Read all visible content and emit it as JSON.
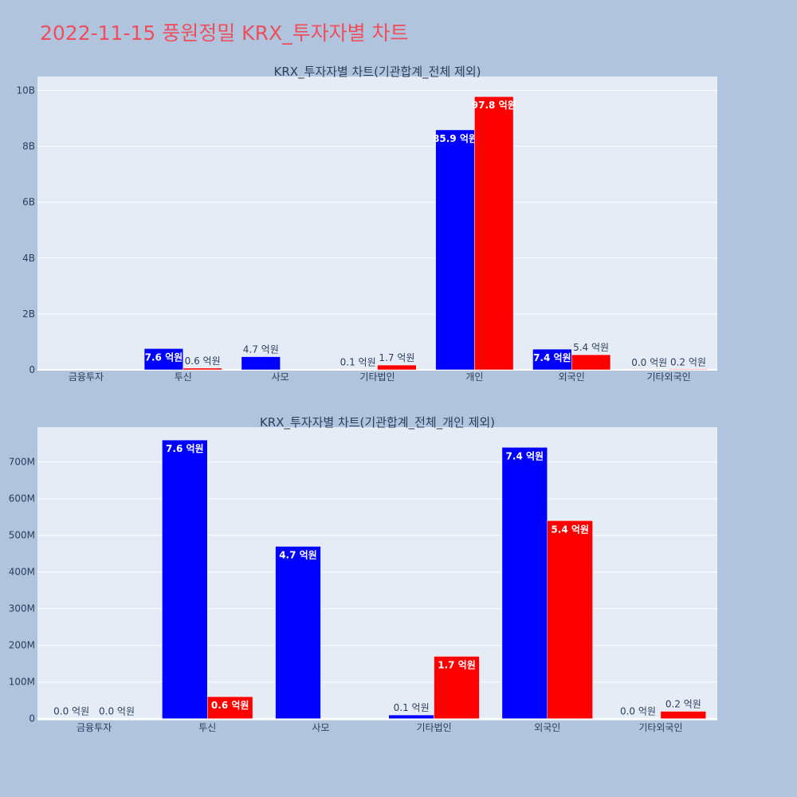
{
  "title": "2022-11-15 풍원정밀 KRX_투자자별 차트",
  "colors": {
    "buy": "#0000ff",
    "sell": "#ff0000",
    "background": "#b0c4de",
    "plot_bg": "#e5ecf6",
    "title": "#ef4e5c"
  },
  "chart_data": [
    {
      "type": "bar",
      "title": "KRX_투자자별 차트(기관합계_전체 제외)",
      "categories": [
        "금융투자",
        "투신",
        "사모",
        "기타법인",
        "개인",
        "외국인",
        "기타외국인"
      ],
      "series": [
        {
          "values": [
            0,
            760000000,
            470000000,
            10000000,
            8590000000,
            740000000,
            0
          ],
          "labels": [
            "",
            "7.6 억원",
            "4.7 억원",
            "0.1 억원",
            "85.9 억원",
            "7.4 억원",
            "0.0 억원"
          ]
        },
        {
          "values": [
            0,
            60000000,
            0,
            170000000,
            9780000000,
            540000000,
            20000000
          ],
          "labels": [
            "",
            "0.6 억원",
            "",
            "1.7 억원",
            "97.8 억원",
            "5.4 억원",
            "0.2 억원"
          ]
        }
      ],
      "ylim": [
        0,
        10500000000
      ],
      "yticks": [
        0,
        2000000000,
        4000000000,
        6000000000,
        8000000000,
        10000000000
      ],
      "yticklabels": [
        "0",
        "2B",
        "4B",
        "6B",
        "8B",
        "10B"
      ],
      "grid": true
    },
    {
      "type": "bar",
      "title": "KRX_투자자별 차트(기관합계_전체_개인 제외)",
      "categories": [
        "금융투자",
        "투신",
        "사모",
        "기타법인",
        "외국인",
        "기타외국인"
      ],
      "series": [
        {
          "values": [
            0,
            760000000,
            470000000,
            10000000,
            740000000,
            0
          ],
          "labels": [
            "0.0 억원",
            "7.6 억원",
            "4.7 억원",
            "0.1 억원",
            "7.4 억원",
            "0.0 억원"
          ]
        },
        {
          "values": [
            0,
            60000000,
            0,
            170000000,
            540000000,
            20000000
          ],
          "labels": [
            "0.0 억원",
            "0.6 억원",
            "",
            "1.7 억원",
            "5.4 억원",
            "0.2 억원"
          ]
        }
      ],
      "ylim": [
        -5000000,
        795000000
      ],
      "yticks": [
        0,
        100000000,
        200000000,
        300000000,
        400000000,
        500000000,
        600000000,
        700000000
      ],
      "yticklabels": [
        "0",
        "100M",
        "200M",
        "300M",
        "400M",
        "500M",
        "600M",
        "700M"
      ],
      "grid": true
    }
  ]
}
